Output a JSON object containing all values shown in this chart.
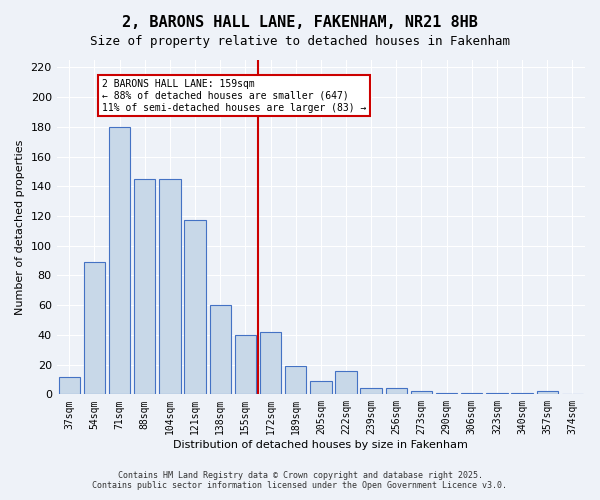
{
  "title": "2, BARONS HALL LANE, FAKENHAM, NR21 8HB",
  "subtitle": "Size of property relative to detached houses in Fakenham",
  "xlabel": "Distribution of detached houses by size in Fakenham",
  "ylabel": "Number of detached properties",
  "bar_labels": [
    "37sqm",
    "54sqm",
    "71sqm",
    "88sqm",
    "104sqm",
    "121sqm",
    "138sqm",
    "155sqm",
    "172sqm",
    "189sqm",
    "205sqm",
    "222sqm",
    "239sqm",
    "256sqm",
    "273sqm",
    "290sqm",
    "306sqm",
    "323sqm",
    "340sqm",
    "357sqm",
    "374sqm"
  ],
  "bar_values": [
    12,
    89,
    180,
    145,
    145,
    117,
    60,
    40,
    42,
    19,
    9,
    16,
    4,
    4,
    2,
    1,
    1,
    1,
    1,
    2,
    0
  ],
  "bar_color": "#c8d8e8",
  "bar_edge_color": "#4472c4",
  "background_color": "#eef2f8",
  "grid_color": "#ffffff",
  "vline_pos": 7.5,
  "vline_color": "#cc0000",
  "annotation_title": "2 BARONS HALL LANE: 159sqm",
  "annotation_line1": "← 88% of detached houses are smaller (647)",
  "annotation_line2": "11% of semi-detached houses are larger (83) →",
  "annotation_box_color": "#ffffff",
  "annotation_box_edge": "#cc0000",
  "ylim": [
    0,
    225
  ],
  "yticks": [
    0,
    20,
    40,
    60,
    80,
    100,
    120,
    140,
    160,
    180,
    200,
    220
  ],
  "footer1": "Contains HM Land Registry data © Crown copyright and database right 2025.",
  "footer2": "Contains public sector information licensed under the Open Government Licence v3.0."
}
